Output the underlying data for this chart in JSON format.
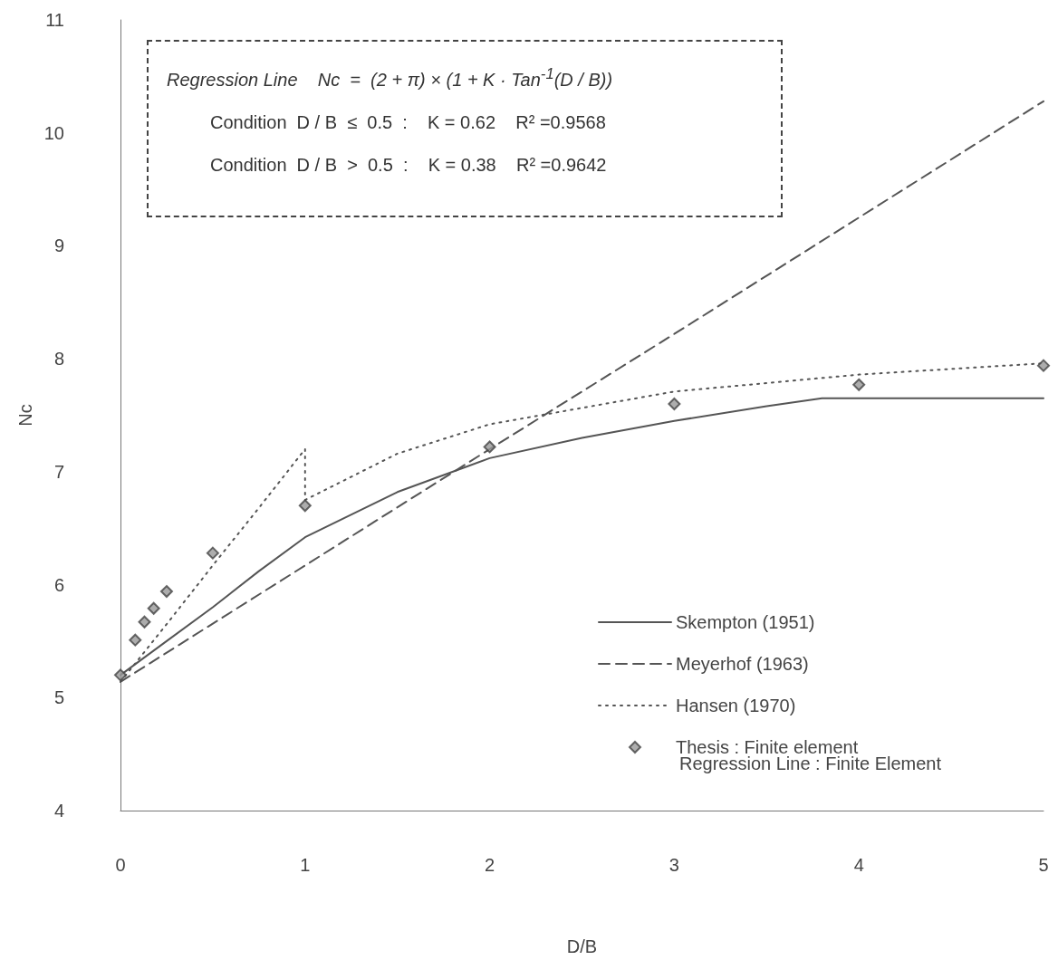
{
  "chart_data": {
    "type": "line",
    "xlabel": "D/B",
    "ylabel": "Nc",
    "xlim": [
      0,
      5
    ],
    "xticks": [
      0,
      1,
      2,
      3,
      4,
      5
    ],
    "ylim": [
      4,
      11
    ],
    "yticks": [
      4,
      5,
      6,
      7,
      8,
      9,
      10,
      11
    ],
    "grid": false,
    "legend": "right",
    "series": [
      {
        "name": "Skempton (1951)",
        "color": "#555555",
        "line_style": "solid",
        "marker": "none",
        "x": [
          0,
          0.25,
          0.5,
          0.75,
          1,
          1.5,
          2,
          2.5,
          3,
          3.5,
          3.8,
          5
        ],
        "values": [
          5.2,
          5.5,
          5.8,
          6.12,
          6.42,
          6.82,
          7.12,
          7.3,
          7.45,
          7.58,
          7.65,
          7.65
        ]
      },
      {
        "name": "Meyerhof (1963)",
        "color": "#555555",
        "line_style": "dashed",
        "marker": "none",
        "x": [
          0,
          1,
          2,
          3,
          4,
          5
        ],
        "values": [
          5.14,
          6.17,
          7.2,
          8.22,
          9.25,
          10.28
        ]
      },
      {
        "name": "Hansen (1970)",
        "color": "#555555",
        "line_style": "dotted",
        "marker": "none",
        "x": [
          0,
          0.25,
          0.5,
          0.75,
          1,
          1,
          1.5,
          2,
          3,
          4,
          5
        ],
        "values": [
          5.14,
          5.65,
          6.17,
          6.68,
          7.2,
          6.75,
          7.16,
          7.42,
          7.71,
          7.86,
          7.96
        ]
      },
      {
        "name": "Thesis : Finite element",
        "type": "scatter",
        "color": "#999999",
        "marker": "diamond",
        "x": [
          0,
          0.08,
          0.13,
          0.18,
          0.25,
          0.5,
          1,
          2,
          3,
          4,
          5
        ],
        "values": [
          5.2,
          5.51,
          5.67,
          5.79,
          5.94,
          6.28,
          6.7,
          7.22,
          7.6,
          7.77,
          7.94
        ]
      }
    ],
    "annotations": [
      "Regression Line    Nc  =  (2 + π) × (1 + K · Tan$^{-1}$(D / B))",
      "Condition  D / B  ≤  0.5  :    K = 0.62    R² =0.9568",
      "Condition  D / B  >  0.5  :    K = 0.38    R² =0.9642",
      "Regression Line : Finite Element"
    ]
  }
}
